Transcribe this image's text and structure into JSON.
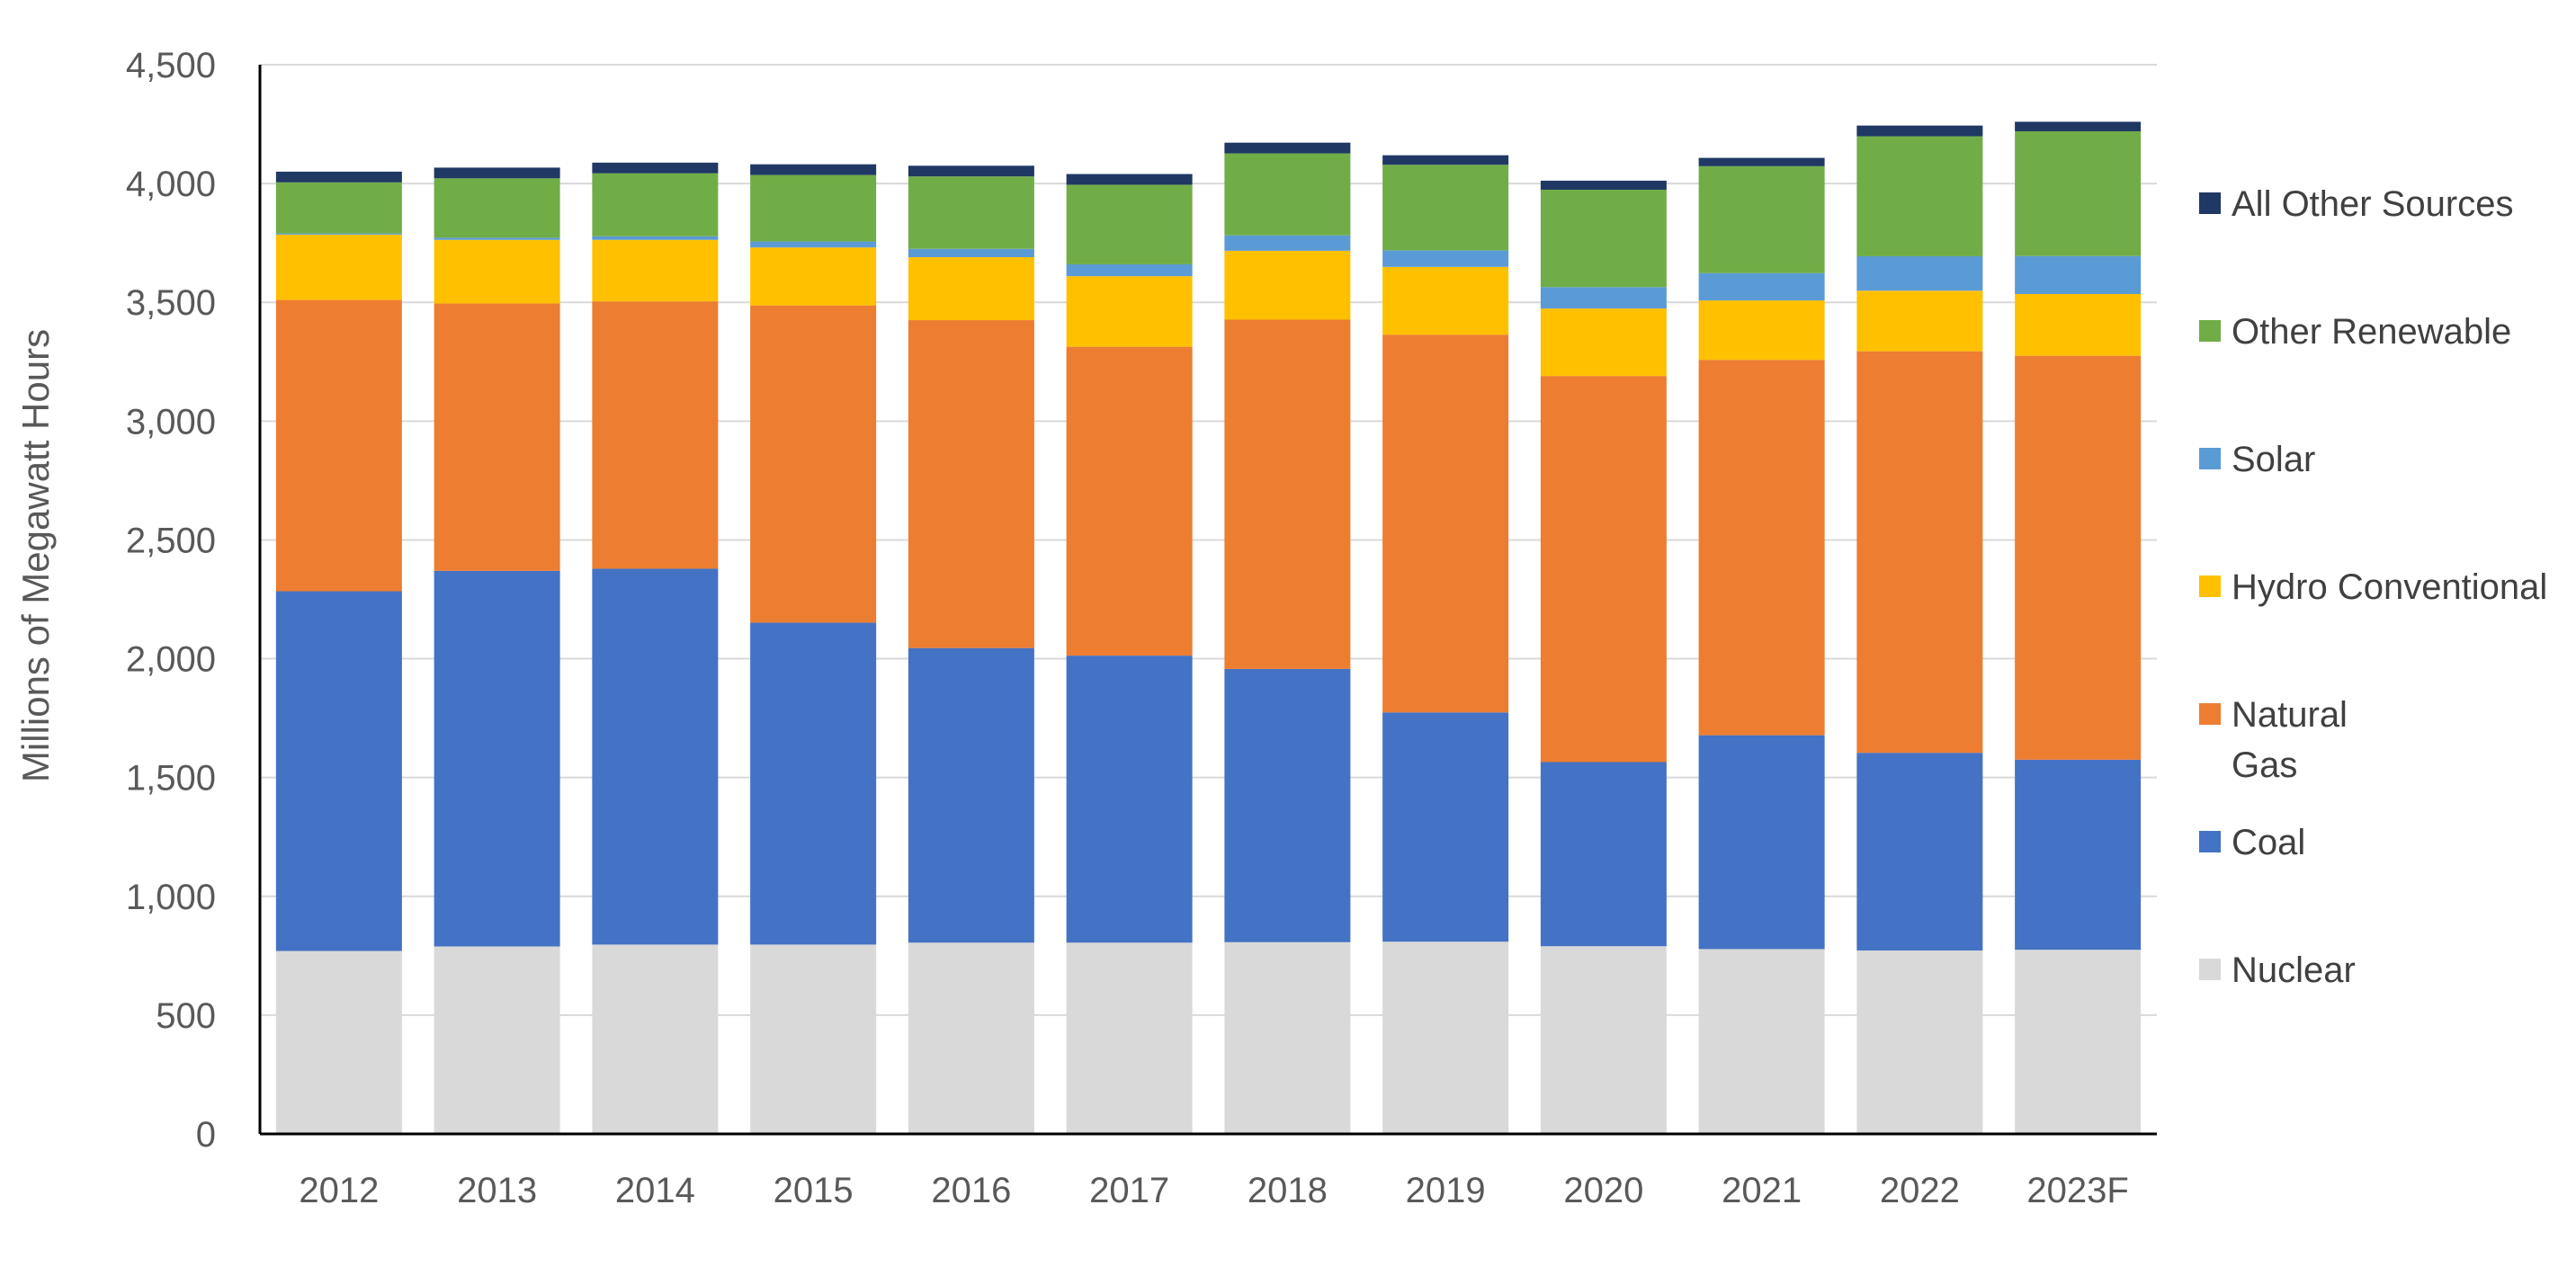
{
  "chart_data": {
    "type": "bar",
    "stacked": true,
    "title": "",
    "xlabel": "",
    "ylabel": "Millions of Megawatt Hours",
    "ylim": [
      0,
      4500
    ],
    "yticks": [
      0,
      500,
      1000,
      1500,
      2000,
      2500,
      3000,
      3500,
      4000,
      4500
    ],
    "ytick_labels": [
      "0",
      "500",
      "1,000",
      "1,500",
      "2,000",
      "2,500",
      "3,000",
      "3,500",
      "4,000",
      "4,500"
    ],
    "grid": true,
    "legend_position": "right",
    "categories": [
      "2012",
      "2013",
      "2014",
      "2015",
      "2016",
      "2017",
      "2018",
      "2019",
      "2020",
      "2021",
      "2022",
      "2023F"
    ],
    "series": [
      {
        "name": "Nuclear",
        "color": "#d9d9d9",
        "values": [
          770,
          789,
          797,
          797,
          805,
          805,
          807,
          809,
          790,
          778,
          772,
          775
        ]
      },
      {
        "name": "Coal",
        "color": "#4472c4",
        "values": [
          1514,
          1581,
          1582,
          1355,
          1240,
          1208,
          1150,
          965,
          775,
          900,
          832,
          800
        ]
      },
      {
        "name": "Natural Gas",
        "color": "#ed7d31",
        "lines": [
          "Natural",
          "Gas"
        ],
        "values": [
          1226,
          1125,
          1125,
          1335,
          1380,
          1300,
          1470,
          1590,
          1625,
          1580,
          1690,
          1700
        ]
      },
      {
        "name": "Hydro Conventional",
        "color": "#ffc000",
        "values": [
          275,
          268,
          259,
          244,
          265,
          297,
          290,
          285,
          284,
          250,
          255,
          260
        ]
      },
      {
        "name": "Solar",
        "color": "#5b9bd5",
        "values": [
          5,
          9,
          15,
          25,
          35,
          50,
          65,
          70,
          90,
          115,
          145,
          160
        ]
      },
      {
        "name": "Other Renewable",
        "color": "#70ad47",
        "values": [
          215,
          250,
          265,
          280,
          305,
          335,
          345,
          360,
          410,
          450,
          505,
          525
        ]
      },
      {
        "name": "All Other Sources",
        "color": "#203864",
        "values": [
          45,
          45,
          45,
          45,
          45,
          45,
          45,
          40,
          38,
          35,
          45,
          40
        ]
      }
    ]
  }
}
